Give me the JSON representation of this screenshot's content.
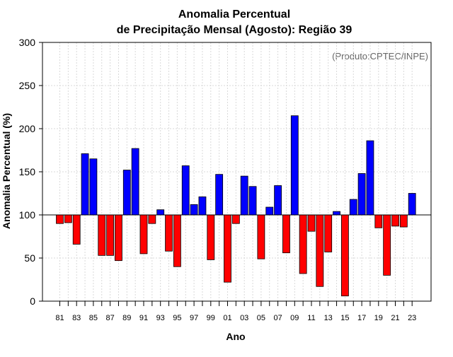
{
  "chart_data": {
    "type": "bar",
    "title": "Anomalia Percentual",
    "subtitle": "de Precipitação Mensal (Agosto): Região 39",
    "xlabel": "Ano",
    "ylabel": "Anomalia Percentual (%)",
    "annotation": "(Produto:CPTEC/INPE)",
    "ylim": [
      0,
      300
    ],
    "yticks": [
      "0",
      "50",
      "100",
      "150",
      "200",
      "250",
      "300"
    ],
    "baseline": 100,
    "grid": true,
    "colors": {
      "above": "#0000ff",
      "below": "#ff0000"
    },
    "categories": [
      "81",
      "82",
      "83",
      "84",
      "85",
      "86",
      "87",
      "88",
      "89",
      "90",
      "91",
      "92",
      "93",
      "94",
      "95",
      "96",
      "97",
      "98",
      "99",
      "00",
      "01",
      "02",
      "03",
      "04",
      "05",
      "06",
      "07",
      "08",
      "09",
      "10",
      "11",
      "12",
      "13",
      "14",
      "15",
      "16",
      "17",
      "18",
      "19",
      "20",
      "21",
      "22",
      "23"
    ],
    "values": [
      90,
      91,
      66,
      171,
      165,
      53,
      53,
      47,
      152,
      177,
      55,
      90,
      106,
      58,
      40,
      157,
      112,
      121,
      48,
      147,
      22,
      90,
      145,
      133,
      49,
      109,
      134,
      56,
      215,
      32,
      81,
      17,
      57,
      104,
      6,
      118,
      148,
      186,
      85,
      30,
      87,
      86,
      125
    ]
  }
}
